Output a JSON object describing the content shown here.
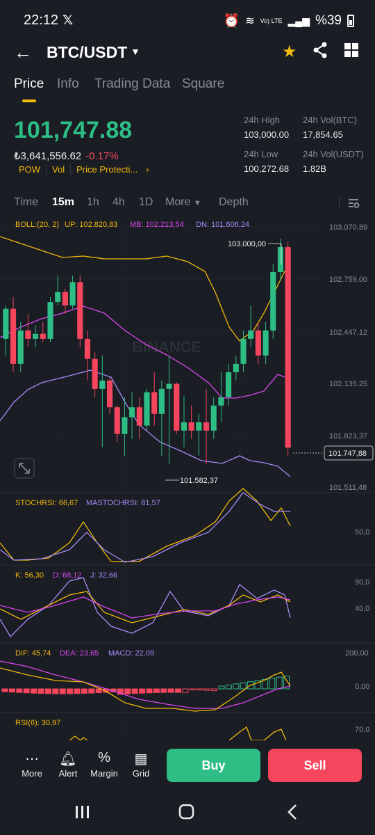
{
  "status_bar": {
    "time": "22:12",
    "x_logo": "𝕏",
    "signal_text": "Vo) LTE",
    "battery": "%39"
  },
  "header": {
    "pair": "BTC/USDT"
  },
  "tabs": [
    {
      "label": "Price"
    },
    {
      "label": "Info"
    },
    {
      "label": "Trading Data"
    },
    {
      "label": "Square"
    }
  ],
  "price": {
    "last": "101,747.88",
    "fiat": "₺3,641,556.62",
    "change": "-0.17%",
    "tags": [
      "POW",
      "Vol",
      "Price Protecti..."
    ],
    "arrow": "›",
    "high_label": "24h High",
    "high": "103,000.00",
    "low_label": "24h Low",
    "low": "100,272.68",
    "vol_btc_label": "24h Vol(BTC)",
    "vol_btc": "17,854.65",
    "vol_usdt_label": "24h Vol(USDT)",
    "vol_usdt": "1.82B"
  },
  "timeframes": {
    "time": "Time",
    "m15": "15m",
    "h1": "1h",
    "h4": "4h",
    "d1": "1D",
    "more": "More",
    "depth": "Depth"
  },
  "chart_data": {
    "type": "candlestick",
    "boll": {
      "label": "BOLL:(20, 2)",
      "up": "UP: 102.820,83",
      "mb": "MB: 102.213,54",
      "dn": "DN: 101.606,24"
    },
    "price_axis": [
      "103.070,89",
      "102.759,00",
      "102.447,12",
      "102.135,25",
      "101.823,37",
      "101.511,48"
    ],
    "current_price": "101.747,88",
    "high_marker": "103.000,00",
    "low_marker": "101.582,37",
    "ylim": [
      101511.48,
      103070.89
    ],
    "candles": [
      [
        102400,
        102600,
        102300,
        102580
      ],
      [
        102580,
        102650,
        102200,
        102250
      ],
      [
        102250,
        102500,
        102200,
        102450
      ],
      [
        102450,
        102550,
        102350,
        102400
      ],
      [
        102400,
        102480,
        102350,
        102430
      ],
      [
        102430,
        102500,
        102380,
        102400
      ],
      [
        102400,
        102650,
        102380,
        102620
      ],
      [
        102620,
        102780,
        102600,
        102680
      ],
      [
        102680,
        102700,
        102550,
        102600
      ],
      [
        102600,
        102780,
        102580,
        102740
      ],
      [
        102740,
        102780,
        102350,
        102400
      ],
      [
        102400,
        102450,
        102150,
        102280
      ],
      [
        102280,
        102320,
        102050,
        102100
      ],
      [
        102100,
        102300,
        101750,
        102150
      ],
      [
        102150,
        102170,
        101950,
        101990
      ],
      [
        101990,
        102000,
        101780,
        101830
      ],
      [
        101830,
        102050,
        101700,
        101930
      ],
      [
        101930,
        102080,
        101800,
        101990
      ],
      [
        101990,
        102050,
        101800,
        101880
      ],
      [
        101880,
        102100,
        101850,
        102080
      ],
      [
        102080,
        102200,
        101880,
        101950
      ],
      [
        101950,
        102150,
        101700,
        102100
      ],
      [
        102100,
        102300,
        101650,
        102130
      ],
      [
        102130,
        102140,
        101830,
        101850
      ],
      [
        101850,
        102060,
        101750,
        101900
      ],
      [
        101900,
        102000,
        101800,
        101850
      ],
      [
        101850,
        101950,
        101700,
        101900
      ],
      [
        101900,
        102100,
        101650,
        101850
      ],
      [
        101850,
        102050,
        101800,
        102000
      ],
      [
        102000,
        102200,
        101900,
        102050
      ],
      [
        102050,
        102250,
        102000,
        102200
      ],
      [
        102200,
        102300,
        102150,
        102250
      ],
      [
        102250,
        102450,
        102200,
        102400
      ],
      [
        102400,
        102600,
        102350,
        102450
      ],
      [
        102450,
        102500,
        102250,
        102300
      ],
      [
        102300,
        102500,
        102250,
        102450
      ],
      [
        102450,
        102850,
        102400,
        102800
      ],
      [
        102800,
        103000,
        102750,
        102950
      ],
      [
        102950,
        102980,
        101700,
        101747.88
      ]
    ],
    "stoch": {
      "label": "STOCHRSI: 66,67",
      "ma_label": "MASTOCHRSI: 81,57",
      "axis": [
        "50,0"
      ]
    },
    "kdj": {
      "k": "K: 56,30",
      "d": "D: 68,12",
      "j": "J: 32,66",
      "axis": [
        "90,0",
        "40,0"
      ]
    },
    "macd": {
      "dif": "DIF: 45,74",
      "dea": "DEA: 23,65",
      "macd": "MACD: 22,09",
      "axis": [
        "200,00",
        "0,00"
      ]
    },
    "rsi": {
      "label": "RSI(6): 30,97",
      "axis": [
        "70,0"
      ]
    },
    "watermark": "BINANCE"
  },
  "bottom": {
    "more": "More",
    "alert": "Alert",
    "margin": "Margin",
    "grid": "Grid",
    "buy": "Buy",
    "sell": "Sell"
  }
}
